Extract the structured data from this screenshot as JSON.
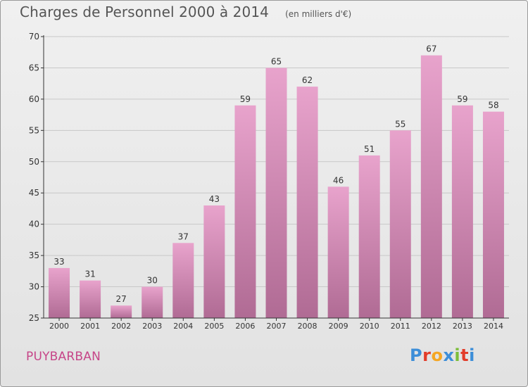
{
  "header": {
    "title": "Charges de Personnel 2000 à 2014",
    "subtitle": "(en milliers d'€)"
  },
  "footer": {
    "place": "PUYBARBAN",
    "logo": "Proxiti",
    "logo_colors": [
      "#3d8ed8",
      "#e23c29",
      "#f5a623",
      "#3d8ed8",
      "#7cbd3a",
      "#e23c29",
      "#3d8ed8"
    ]
  },
  "colors": {
    "bar_top": "#e8a3cc",
    "bar_bottom": "#b06b94",
    "axis": "#333333",
    "grid": "#c8c8c8",
    "text": "#333333"
  },
  "chart_data": {
    "type": "bar",
    "categories": [
      "2000",
      "2001",
      "2002",
      "2003",
      "2004",
      "2005",
      "2006",
      "2007",
      "2008",
      "2009",
      "2010",
      "2011",
      "2012",
      "2013",
      "2014"
    ],
    "values": [
      33,
      31,
      27,
      30,
      37,
      43,
      59,
      65,
      62,
      46,
      51,
      55,
      67,
      59,
      58
    ],
    "ylim": [
      25,
      70
    ],
    "yticks": [
      25,
      30,
      35,
      40,
      45,
      50,
      55,
      60,
      65,
      70
    ],
    "grid": "horizontal",
    "data_labels": true
  }
}
